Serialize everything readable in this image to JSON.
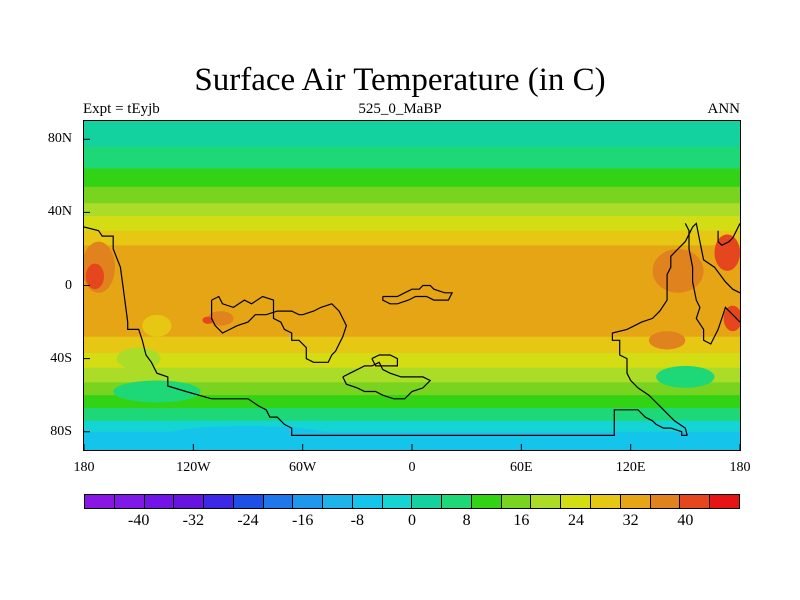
{
  "title": "Surface Air Temperature (in C)",
  "subtitle_left": "Expt = tEyjb",
  "subtitle_center": "525_0_MaBP",
  "subtitle_right": "ANN",
  "y_ticks": [
    "80N",
    "40N",
    "0",
    "40S",
    "80S"
  ],
  "y_tick_values": [
    80,
    40,
    0,
    -40,
    -80
  ],
  "x_ticks": [
    "180",
    "120W",
    "60W",
    "0",
    "60E",
    "120E",
    "180"
  ],
  "x_tick_values": [
    -180,
    -120,
    -60,
    0,
    60,
    120,
    180
  ],
  "lon_range": [
    -180,
    180
  ],
  "lat_range": [
    -90,
    90
  ],
  "colorbar": {
    "colors": [
      "#8a16e6",
      "#8018e8",
      "#7214e8",
      "#6814e0",
      "#3c28e6",
      "#1e50e8",
      "#1e78ea",
      "#1e98ec",
      "#1eb4ea",
      "#14c4ea",
      "#14d4d4",
      "#14d2a0",
      "#1ed878",
      "#32d214",
      "#78d41e",
      "#aadc28",
      "#d4dc14",
      "#e6c814",
      "#e6a514",
      "#e0821e",
      "#e6461e",
      "#e61414"
    ],
    "labels": [
      "-40",
      "-32",
      "-24",
      "-16",
      "-8",
      "0",
      "8",
      "16",
      "24",
      "32",
      "40"
    ],
    "label_values": [
      -40,
      -32,
      -24,
      -16,
      -8,
      0,
      8,
      16,
      24,
      32,
      40
    ],
    "value_range": [
      -48,
      48
    ]
  },
  "field_bands": [
    {
      "lat_top": 90,
      "lat_bottom": 76,
      "color": "#14d2a0"
    },
    {
      "lat_top": 76,
      "lat_bottom": 64,
      "color": "#1ed878"
    },
    {
      "lat_top": 64,
      "lat_bottom": 54,
      "color": "#32d214"
    },
    {
      "lat_top": 54,
      "lat_bottom": 45,
      "color": "#78d41e"
    },
    {
      "lat_top": 45,
      "lat_bottom": 38,
      "color": "#aadc28"
    },
    {
      "lat_top": 38,
      "lat_bottom": 30,
      "color": "#d4dc14"
    },
    {
      "lat_top": 30,
      "lat_bottom": 22,
      "color": "#e6c814"
    },
    {
      "lat_top": 22,
      "lat_bottom": -28,
      "color": "#e6a514"
    },
    {
      "lat_top": -28,
      "lat_bottom": -37,
      "color": "#e6c814"
    },
    {
      "lat_top": -37,
      "lat_bottom": -45,
      "color": "#d4dc14"
    },
    {
      "lat_top": -45,
      "lat_bottom": -53,
      "color": "#aadc28"
    },
    {
      "lat_top": -53,
      "lat_bottom": -60,
      "color": "#78d41e"
    },
    {
      "lat_top": -60,
      "lat_bottom": -67,
      "color": "#32d214"
    },
    {
      "lat_top": -67,
      "lat_bottom": -74,
      "color": "#1ed878"
    },
    {
      "lat_top": -74,
      "lat_bottom": -80,
      "color": "#14d4d4"
    },
    {
      "lat_top": -80,
      "lat_bottom": -90,
      "color": "#14c4ea"
    }
  ],
  "hotspots": [
    {
      "lon": -172,
      "lat": 10,
      "rx": 9,
      "ry": 14,
      "color": "#e0821e"
    },
    {
      "lon": -174,
      "lat": 5,
      "rx": 5,
      "ry": 7,
      "color": "#e6461e"
    },
    {
      "lon": -105,
      "lat": -18,
      "rx": 7,
      "ry": 4,
      "color": "#e0821e"
    },
    {
      "lon": -112,
      "lat": -19,
      "rx": 3,
      "ry": 2,
      "color": "#e6461e"
    },
    {
      "lon": 146,
      "lat": 8,
      "rx": 14,
      "ry": 12,
      "color": "#e0821e"
    },
    {
      "lon": 173,
      "lat": 18,
      "rx": 7,
      "ry": 10,
      "color": "#e6461e"
    },
    {
      "lon": 176,
      "lat": -18,
      "rx": 5,
      "ry": 7,
      "color": "#e6461e"
    },
    {
      "lon": 140,
      "lat": -30,
      "rx": 10,
      "ry": 5,
      "color": "#e0821e"
    },
    {
      "lon": -140,
      "lat": -22,
      "rx": 8,
      "ry": 6,
      "color": "#e6c814"
    },
    {
      "lon": -150,
      "lat": -40,
      "rx": 12,
      "ry": 6,
      "color": "#aadc28"
    },
    {
      "lon": 150,
      "lat": -50,
      "rx": 16,
      "ry": 6,
      "color": "#1ed878"
    },
    {
      "lon": -140,
      "lat": -58,
      "rx": 24,
      "ry": 6,
      "color": "#1ed878"
    },
    {
      "lon": -90,
      "lat": -82,
      "rx": 45,
      "ry": 5,
      "color": "#14c4ea"
    }
  ],
  "coastlines": [
    [
      [
        -180,
        32
      ],
      [
        -172,
        30
      ],
      [
        -170,
        27
      ],
      [
        -164,
        27
      ],
      [
        -164,
        20
      ],
      [
        -160,
        10
      ],
      [
        -158,
        -5
      ],
      [
        -156,
        -20
      ],
      [
        -156,
        -24
      ],
      [
        -150,
        -24
      ],
      [
        -148,
        -30
      ],
      [
        -146,
        -38
      ],
      [
        -143,
        -42
      ],
      [
        -140,
        -48
      ],
      [
        -134,
        -50
      ],
      [
        -134,
        -55
      ],
      [
        -124,
        -58
      ],
      [
        -110,
        -62
      ],
      [
        -90,
        -62
      ],
      [
        -84,
        -66
      ],
      [
        -80,
        -68
      ],
      [
        -78,
        -72
      ],
      [
        -74,
        -72
      ],
      [
        -70,
        -76
      ],
      [
        -66,
        -78
      ],
      [
        -66,
        -82
      ],
      [
        -40,
        -82
      ],
      [
        -20,
        -82
      ],
      [
        0,
        -82
      ],
      [
        20,
        -82
      ],
      [
        44,
        -82
      ],
      [
        60,
        -82
      ],
      [
        80,
        -82
      ],
      [
        100,
        -82
      ],
      [
        111,
        -82
      ],
      [
        111,
        -68
      ],
      [
        124,
        -68
      ],
      [
        128,
        -72
      ],
      [
        132,
        -74
      ],
      [
        134,
        -76
      ],
      [
        138,
        -78
      ],
      [
        142,
        -78
      ],
      [
        148,
        -80
      ],
      [
        148,
        -82
      ],
      [
        151,
        -82
      ]
    ],
    [
      [
        151,
        -82
      ],
      [
        150,
        -78
      ],
      [
        144,
        -74
      ],
      [
        140,
        -70
      ],
      [
        136,
        -66
      ],
      [
        134,
        -64
      ],
      [
        130,
        -60
      ],
      [
        124,
        -56
      ],
      [
        120,
        -52
      ],
      [
        118,
        -48
      ],
      [
        118,
        -40
      ],
      [
        114,
        -38
      ],
      [
        114,
        -30
      ],
      [
        110,
        -30
      ],
      [
        110,
        -26
      ],
      [
        118,
        -24
      ],
      [
        126,
        -20
      ],
      [
        132,
        -18
      ],
      [
        136,
        -14
      ],
      [
        140,
        -8
      ],
      [
        140,
        6
      ],
      [
        142,
        10
      ],
      [
        142,
        16
      ],
      [
        146,
        20
      ],
      [
        150,
        24
      ],
      [
        152,
        28
      ],
      [
        154,
        32
      ],
      [
        156,
        34
      ],
      [
        158,
        24
      ],
      [
        160,
        14
      ],
      [
        166,
        10
      ],
      [
        172,
        2
      ],
      [
        176,
        -2
      ],
      [
        180,
        -4
      ]
    ],
    [
      [
        180,
        34
      ],
      [
        178,
        30
      ],
      [
        176,
        26
      ],
      [
        174,
        24
      ],
      [
        170,
        22
      ],
      [
        168,
        24
      ],
      [
        168,
        30
      ]
    ],
    [
      [
        -110,
        -8
      ],
      [
        -106,
        -6
      ],
      [
        -104,
        -10
      ],
      [
        -98,
        -12
      ],
      [
        -92,
        -8
      ],
      [
        -88,
        -10
      ],
      [
        -82,
        -6
      ],
      [
        -76,
        -8
      ],
      [
        -76,
        -18
      ],
      [
        -72,
        -20
      ],
      [
        -70,
        -24
      ],
      [
        -66,
        -26
      ],
      [
        -66,
        -30
      ],
      [
        -62,
        -30
      ],
      [
        -58,
        -34
      ],
      [
        -58,
        -40
      ],
      [
        -54,
        -42
      ],
      [
        -50,
        -42
      ],
      [
        -46,
        -42
      ],
      [
        -44,
        -38
      ],
      [
        -42,
        -36
      ],
      [
        -40,
        -32
      ],
      [
        -38,
        -28
      ],
      [
        -36,
        -22
      ],
      [
        -38,
        -18
      ],
      [
        -40,
        -14
      ],
      [
        -44,
        -10
      ],
      [
        -50,
        -12
      ],
      [
        -54,
        -14
      ],
      [
        -60,
        -16
      ],
      [
        -62,
        -16
      ],
      [
        -66,
        -14
      ],
      [
        -70,
        -14
      ],
      [
        -74,
        -14
      ],
      [
        -80,
        -16
      ],
      [
        -86,
        -16
      ],
      [
        -90,
        -20
      ],
      [
        -96,
        -22
      ],
      [
        -100,
        -24
      ],
      [
        -104,
        -26
      ],
      [
        -108,
        -22
      ],
      [
        -110,
        -18
      ],
      [
        -110,
        -8
      ]
    ],
    [
      [
        -16,
        -6
      ],
      [
        -8,
        -6
      ],
      [
        -4,
        -4
      ],
      [
        0,
        -2
      ],
      [
        4,
        -2
      ],
      [
        6,
        0
      ],
      [
        10,
        0
      ],
      [
        12,
        -2
      ],
      [
        18,
        -4
      ],
      [
        22,
        -4
      ],
      [
        20,
        -8
      ],
      [
        12,
        -8
      ],
      [
        8,
        -6
      ],
      [
        2,
        -6
      ],
      [
        -2,
        -8
      ],
      [
        -8,
        -10
      ],
      [
        -12,
        -10
      ],
      [
        -16,
        -8
      ],
      [
        -16,
        -6
      ]
    ],
    [
      [
        -38,
        -50
      ],
      [
        -34,
        -48
      ],
      [
        -30,
        -46
      ],
      [
        -26,
        -44
      ],
      [
        -22,
        -44
      ],
      [
        -18,
        -42
      ],
      [
        -16,
        -46
      ],
      [
        -12,
        -48
      ],
      [
        -6,
        -50
      ],
      [
        0,
        -50
      ],
      [
        6,
        -50
      ],
      [
        10,
        -52
      ],
      [
        6,
        -56
      ],
      [
        0,
        -58
      ],
      [
        -4,
        -62
      ],
      [
        -10,
        -62
      ],
      [
        -16,
        -60
      ],
      [
        -20,
        -58
      ],
      [
        -26,
        -58
      ],
      [
        -30,
        -56
      ],
      [
        -36,
        -54
      ],
      [
        -38,
        -50
      ]
    ],
    [
      [
        -22,
        -40
      ],
      [
        -18,
        -38
      ],
      [
        -12,
        -38
      ],
      [
        -8,
        -40
      ],
      [
        -8,
        -44
      ],
      [
        -14,
        -44
      ],
      [
        -20,
        -44
      ],
      [
        -22,
        -40
      ]
    ],
    [
      [
        150,
        34
      ],
      [
        152,
        30
      ],
      [
        152,
        20
      ],
      [
        154,
        10
      ],
      [
        154,
        2
      ],
      [
        156,
        -8
      ],
      [
        158,
        -12
      ],
      [
        156,
        -18
      ],
      [
        160,
        -24
      ],
      [
        160,
        -30
      ],
      [
        164,
        -32
      ],
      [
        168,
        -24
      ],
      [
        170,
        -18
      ],
      [
        172,
        -12
      ],
      [
        176,
        -16
      ],
      [
        180,
        -20
      ]
    ]
  ]
}
